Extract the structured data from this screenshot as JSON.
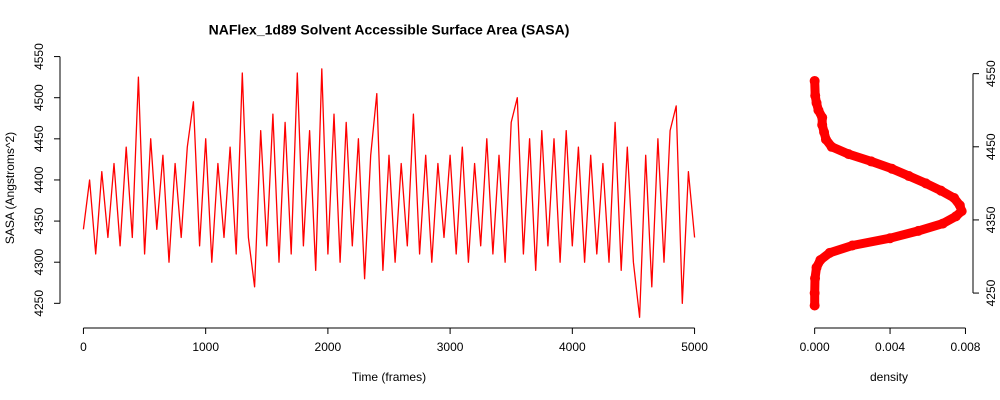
{
  "chart_data": [
    {
      "type": "line",
      "title": "NAFlex_1d89 Solvent Accessible Surface Area (SASA)",
      "x_label": "Time (frames)",
      "y_label": "SASA (Angstroms^2)",
      "color": "#ff0000",
      "x": [
        0,
        50,
        100,
        150,
        200,
        250,
        300,
        350,
        400,
        450,
        500,
        550,
        600,
        650,
        700,
        750,
        800,
        850,
        900,
        950,
        1000,
        1050,
        1100,
        1150,
        1200,
        1250,
        1300,
        1350,
        1400,
        1450,
        1500,
        1550,
        1600,
        1650,
        1700,
        1750,
        1800,
        1850,
        1900,
        1950,
        2000,
        2050,
        2100,
        2150,
        2200,
        2250,
        2300,
        2350,
        2400,
        2450,
        2500,
        2550,
        2600,
        2650,
        2700,
        2750,
        2800,
        2850,
        2900,
        2950,
        3000,
        3050,
        3100,
        3150,
        3200,
        3250,
        3300,
        3350,
        3400,
        3450,
        3500,
        3550,
        3600,
        3650,
        3700,
        3750,
        3800,
        3850,
        3900,
        3950,
        4000,
        4050,
        4100,
        4150,
        4200,
        4250,
        4300,
        4350,
        4400,
        4450,
        4500,
        4550,
        4600,
        4650,
        4700,
        4750,
        4800,
        4850,
        4900,
        4950,
        5000
      ],
      "values": [
        4340,
        4400,
        4310,
        4410,
        4330,
        4420,
        4320,
        4440,
        4330,
        4525,
        4310,
        4450,
        4340,
        4430,
        4300,
        4420,
        4330,
        4440,
        4495,
        4320,
        4450,
        4300,
        4420,
        4330,
        4440,
        4310,
        4530,
        4330,
        4270,
        4460,
        4320,
        4480,
        4300,
        4470,
        4310,
        4530,
        4320,
        4460,
        4290,
        4535,
        4310,
        4480,
        4300,
        4470,
        4320,
        4450,
        4280,
        4430,
        4505,
        4290,
        4430,
        4300,
        4420,
        4320,
        4480,
        4310,
        4430,
        4300,
        4420,
        4330,
        4430,
        4310,
        4440,
        4300,
        4420,
        4320,
        4450,
        4310,
        4430,
        4300,
        4470,
        4500,
        4310,
        4450,
        4290,
        4460,
        4320,
        4450,
        4300,
        4460,
        4320,
        4440,
        4300,
        4430,
        4310,
        4420,
        4300,
        4470,
        4290,
        4440,
        4300,
        4233,
        4430,
        4270,
        4450,
        4300,
        4460,
        4490,
        4250,
        4410,
        4330
      ],
      "xlim": [
        -200,
        5200
      ],
      "xticks": [
        0,
        1000,
        2000,
        3000,
        4000,
        5000
      ],
      "ylim": [
        4220,
        4558
      ],
      "yticks": [
        4250,
        4300,
        4350,
        4400,
        4450,
        4500,
        4550
      ]
    },
    {
      "type": "scatter",
      "x_label": "density",
      "color": "#ff0000",
      "x": [
        0,
        0,
        2e-05,
        0.0001,
        0.0003,
        0.0008,
        0.002,
        0.004,
        0.0055,
        0.0068,
        0.0075,
        0.0078,
        0.0077,
        0.0074,
        0.0067,
        0.0059,
        0.005,
        0.0041,
        0.003,
        0.0018,
        0.0009,
        0.0006,
        0.0005,
        0.0004,
        0.0004,
        0.0002,
        0.0001,
        3e-05,
        0
      ],
      "values": [
        4233,
        4250,
        4270,
        4285,
        4295,
        4305,
        4315,
        4325,
        4335,
        4345,
        4355,
        4362,
        4370,
        4380,
        4390,
        4400,
        4410,
        4420,
        4430,
        4440,
        4450,
        4460,
        4470,
        4480,
        4490,
        4500,
        4510,
        4520,
        4540
      ],
      "xlim": [
        -0.0003,
        0.0084
      ],
      "xticks": [
        {
          "value": 0,
          "label": "0.000"
        },
        {
          "value": 0.004,
          "label": "0.004"
        },
        {
          "value": 0.008,
          "label": "0.008"
        }
      ],
      "ylim": [
        4220,
        4555
      ],
      "yticks": [
        4250,
        4350,
        4450,
        4550
      ]
    }
  ]
}
